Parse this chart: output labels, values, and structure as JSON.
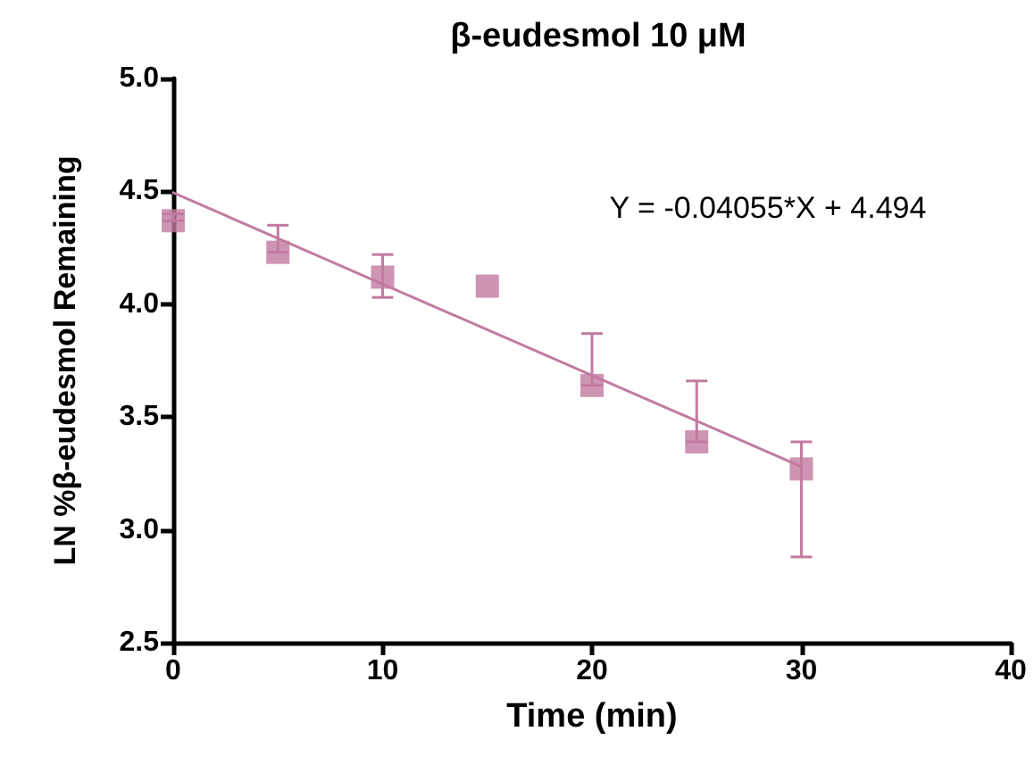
{
  "chart_data": {
    "type": "scatter",
    "title": "β-eudesmol 10 μM",
    "xlabel": "Time (min)",
    "ylabel": "LN %β-eudesmol Remaining",
    "annotations": [
      "Y = -0.04055*X + 4.494"
    ],
    "series": [
      {
        "color": "#c27ba0",
        "x": [
          0,
          5,
          10,
          15,
          20,
          25,
          30
        ],
        "values": [
          4.37,
          4.23,
          4.12,
          4.08,
          3.64,
          3.39,
          3.27
        ],
        "errors": [
          [
            4.37,
            4.4
          ],
          [
            4.23,
            4.35
          ],
          [
            4.03,
            4.22
          ],
          null,
          [
            3.64,
            3.87
          ],
          [
            3.39,
            3.66
          ],
          [
            2.88,
            3.39
          ]
        ],
        "marker": "square"
      },
      {
        "type": "line",
        "color": "#c27ba0",
        "x": [
          0,
          30
        ],
        "values": [
          4.494,
          3.28
        ],
        "marker": "none",
        "line_style": "solid"
      }
    ],
    "xlim": [
      0,
      40
    ],
    "xticks": [
      0,
      10,
      20,
      30,
      40
    ],
    "ylim": [
      2.5,
      5
    ],
    "yticks": [
      2.5,
      {
        "value": 3,
        "label": "3.0"
      },
      3.5,
      {
        "value": 4,
        "label": "4.0"
      },
      4.5,
      {
        "value": 5,
        "label": "5.0"
      }
    ],
    "grid": false
  }
}
